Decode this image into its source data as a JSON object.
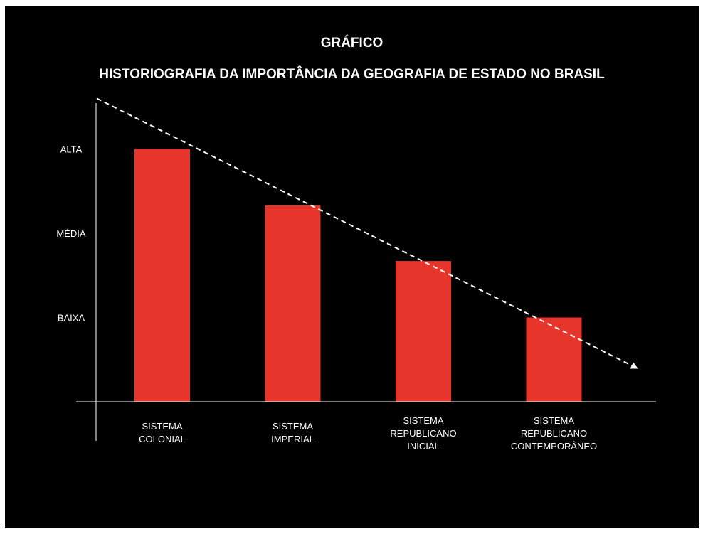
{
  "title": "GRÁFICO",
  "subtitle": "HISTORIOGRAFIA DA IMPORTÂNCIA DA GEOGRAFIA DE ESTADO NO BRASIL",
  "colors": {
    "background": "#000000",
    "bar": "#e8352b",
    "text": "#ffffff",
    "trend": "#ffffff"
  },
  "chart_data": {
    "type": "bar",
    "title": "GRÁFICO",
    "subtitle": "HISTORIOGRAFIA DA IMPORTÂNCIA DA GEOGRAFIA DE ESTADO NO BRASIL",
    "categories": [
      [
        "SISTEMA",
        "COLONIAL"
      ],
      [
        "SISTEMA",
        "IMPERIAL"
      ],
      [
        "SISTEMA",
        "REPUBLICANO",
        "INICIAL"
      ],
      [
        "SISTEMA",
        "REPUBLICANO",
        "CONTEMPORÂNEO"
      ]
    ],
    "values": [
      3,
      2.33,
      1.67,
      1
    ],
    "yticks": [
      {
        "value": 1,
        "label": "BAIXA"
      },
      {
        "value": 2,
        "label": "MÉDIA"
      },
      {
        "value": 3,
        "label": "ALTA"
      }
    ],
    "ylim": [
      0,
      3.5
    ],
    "trend_line": {
      "style": "dashed-arrow",
      "from": 3.6,
      "to": 0.4
    },
    "grid": false,
    "legend": "none"
  }
}
